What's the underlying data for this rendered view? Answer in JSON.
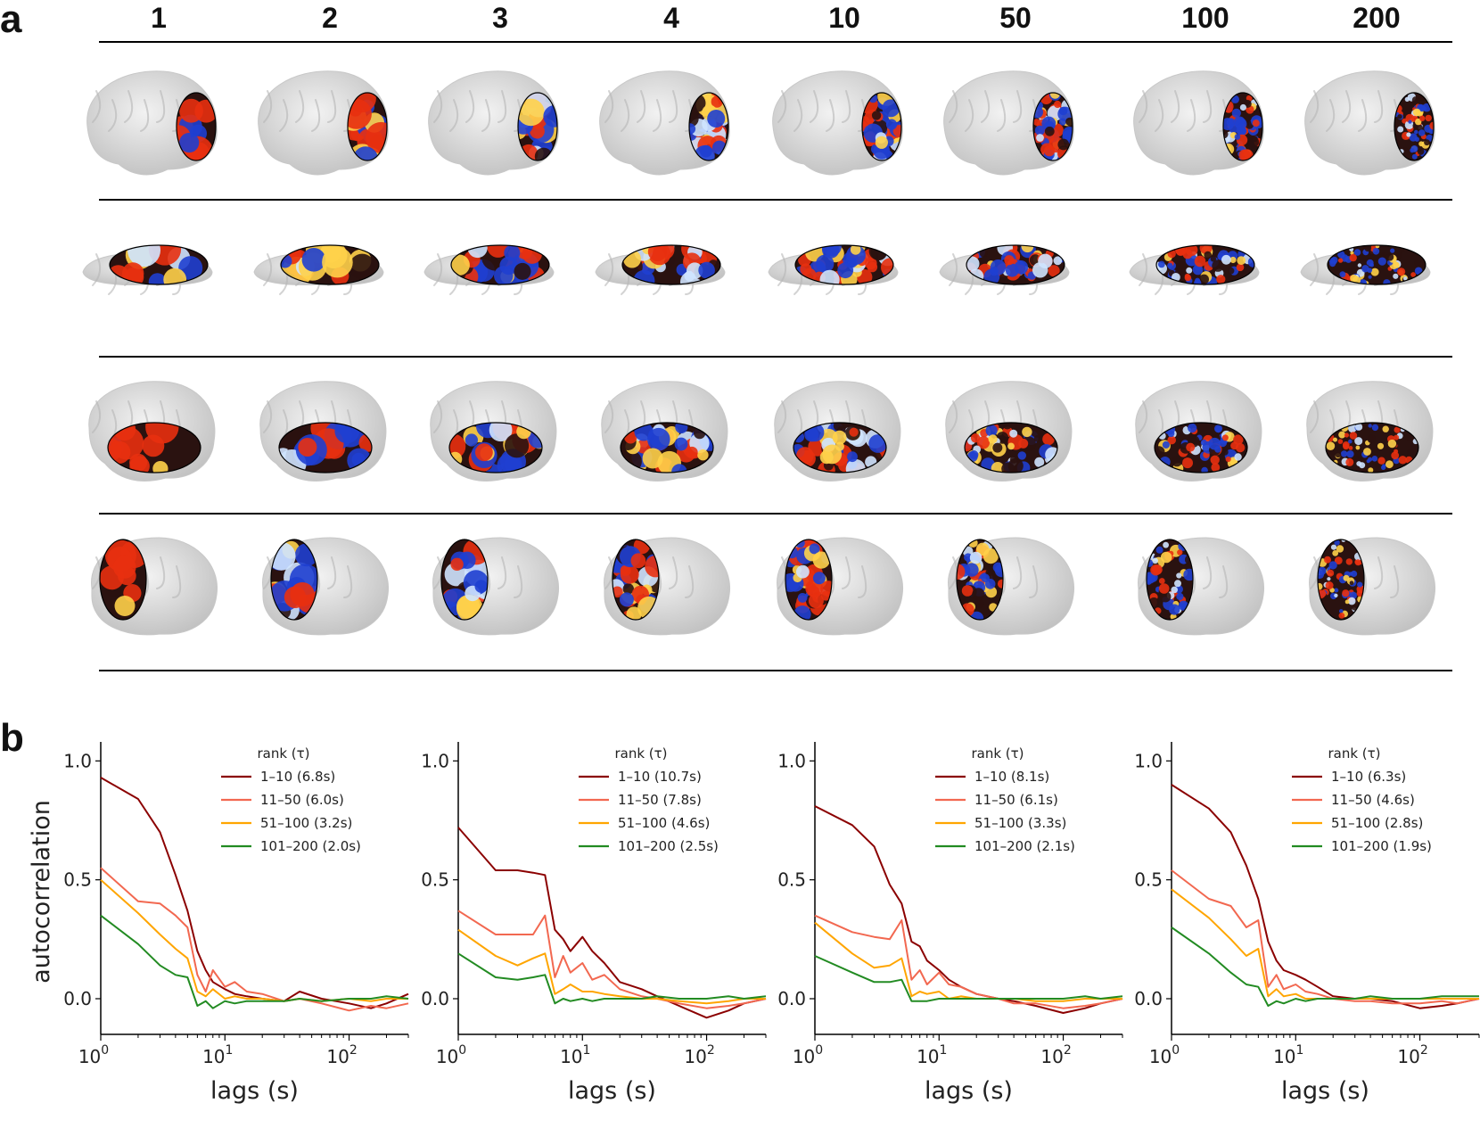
{
  "panel_a": {
    "letter": "a",
    "columns": [
      "1",
      "2",
      "3",
      "4",
      "10",
      "50",
      "100",
      "200"
    ],
    "rows": [
      {
        "view": "lateral",
        "region": "occipital"
      },
      {
        "view": "inferior",
        "region": "temporal-occipital"
      },
      {
        "view": "lateral",
        "region": "temporal"
      },
      {
        "view": "medial",
        "region": "parietal-occipital"
      }
    ],
    "colormap": {
      "negative": "#1f3fd0",
      "neg_light": "#cfe4ff",
      "positive": "#e83010",
      "pos_light": "#ffd24a",
      "dark": "#2a1210"
    },
    "brain_color": "#d9d9d9"
  },
  "panel_b": {
    "letter": "b",
    "ylabel": "autocorrelation",
    "legend_title": "rank (τ)",
    "series_colors": [
      "#8b0000",
      "#f26850",
      "#ffa500",
      "#228b22"
    ],
    "charts": [
      {
        "xlabel": "lags (s)",
        "xscale": "log",
        "xlim": [
          1,
          300
        ],
        "ylim": [
          -0.15,
          1.05
        ],
        "xticks": [
          {
            "base": "10",
            "exp": "0",
            "v": 1
          },
          {
            "base": "10",
            "exp": "1",
            "v": 10
          },
          {
            "base": "10",
            "exp": "2",
            "v": 100
          }
        ],
        "yticks": [
          "0.0",
          "0.5",
          "1.0"
        ],
        "legend": [
          "1–10 (6.8s)",
          "11–50 (6.0s)",
          "51–100 (3.2s)",
          "101–200 (2.0s)"
        ],
        "chart_data": {
          "type": "line",
          "series": [
            {
              "name": "1–10 (6.8s)",
              "x": [
                1,
                2,
                3,
                4,
                5,
                6,
                7,
                8,
                10,
                12,
                15,
                20,
                30,
                40,
                60,
                100,
                150,
                200,
                300
              ],
              "y": [
                0.93,
                0.84,
                0.7,
                0.52,
                0.37,
                0.2,
                0.12,
                0.07,
                0.04,
                0.02,
                0.01,
                0.0,
                -0.01,
                0.03,
                0.0,
                -0.02,
                -0.04,
                -0.02,
                0.02
              ]
            },
            {
              "name": "11–50 (6.0s)",
              "x": [
                1,
                2,
                3,
                4,
                5,
                6,
                7,
                8,
                10,
                12,
                15,
                20,
                30,
                40,
                60,
                100,
                150,
                200,
                300
              ],
              "y": [
                0.55,
                0.41,
                0.4,
                0.35,
                0.3,
                0.1,
                0.03,
                0.12,
                0.05,
                0.07,
                0.03,
                0.02,
                -0.01,
                0.0,
                -0.02,
                -0.05,
                -0.03,
                -0.04,
                -0.02
              ]
            },
            {
              "name": "51–100 (3.2s)",
              "x": [
                1,
                2,
                3,
                4,
                5,
                6,
                7,
                8,
                10,
                12,
                15,
                20,
                30,
                40,
                60,
                100,
                150,
                200,
                300
              ],
              "y": [
                0.5,
                0.36,
                0.27,
                0.21,
                0.17,
                0.03,
                0.01,
                0.04,
                0.0,
                0.01,
                0.0,
                0.0,
                -0.01,
                0.0,
                -0.01,
                0.0,
                -0.01,
                0.0,
                0.0
              ]
            },
            {
              "name": "101–200 (2.0s)",
              "x": [
                1,
                2,
                3,
                4,
                5,
                6,
                7,
                8,
                10,
                12,
                15,
                20,
                30,
                40,
                60,
                100,
                150,
                200,
                300
              ],
              "y": [
                0.35,
                0.23,
                0.14,
                0.1,
                0.09,
                -0.03,
                -0.01,
                -0.04,
                -0.01,
                -0.02,
                -0.01,
                -0.01,
                -0.01,
                0.0,
                -0.01,
                0.0,
                0.0,
                0.01,
                0.0
              ]
            }
          ]
        }
      },
      {
        "xlabel": "lags (s)",
        "xscale": "log",
        "xlim": [
          1,
          300
        ],
        "ylim": [
          -0.15,
          1.05
        ],
        "xticks": [
          {
            "base": "10",
            "exp": "0",
            "v": 1
          },
          {
            "base": "10",
            "exp": "1",
            "v": 10
          },
          {
            "base": "10",
            "exp": "2",
            "v": 100
          }
        ],
        "yticks": [
          "0.0",
          "0.5",
          "1.0"
        ],
        "legend": [
          "1–10 (10.7s)",
          "11–50 (7.8s)",
          "51–100 (4.6s)",
          "101–200 (2.5s)"
        ],
        "chart_data": {
          "type": "line",
          "series": [
            {
              "name": "1–10 (10.7s)",
              "x": [
                1,
                2,
                3,
                4,
                5,
                6,
                7,
                8,
                10,
                12,
                15,
                20,
                30,
                40,
                60,
                100,
                150,
                200,
                300
              ],
              "y": [
                0.72,
                0.54,
                0.54,
                0.53,
                0.52,
                0.29,
                0.25,
                0.2,
                0.26,
                0.2,
                0.15,
                0.07,
                0.04,
                0.01,
                -0.03,
                -0.08,
                -0.05,
                -0.02,
                0.0
              ]
            },
            {
              "name": "11–50 (7.8s)",
              "x": [
                1,
                2,
                3,
                4,
                5,
                6,
                7,
                8,
                10,
                12,
                15,
                20,
                30,
                40,
                60,
                100,
                150,
                200,
                300
              ],
              "y": [
                0.37,
                0.27,
                0.27,
                0.27,
                0.35,
                0.09,
                0.18,
                0.11,
                0.15,
                0.08,
                0.1,
                0.04,
                0.01,
                0.0,
                -0.02,
                -0.04,
                -0.03,
                -0.02,
                0.0
              ]
            },
            {
              "name": "51–100 (4.6s)",
              "x": [
                1,
                2,
                3,
                4,
                5,
                6,
                7,
                8,
                10,
                12,
                15,
                20,
                30,
                40,
                60,
                100,
                150,
                200,
                300
              ],
              "y": [
                0.29,
                0.18,
                0.14,
                0.17,
                0.19,
                0.02,
                0.04,
                0.06,
                0.03,
                0.03,
                0.02,
                0.01,
                0.0,
                0.0,
                -0.01,
                -0.02,
                -0.01,
                0.0,
                0.0
              ]
            },
            {
              "name": "101–200 (2.5s)",
              "x": [
                1,
                2,
                3,
                4,
                5,
                6,
                7,
                8,
                10,
                12,
                15,
                20,
                30,
                40,
                60,
                100,
                150,
                200,
                300
              ],
              "y": [
                0.19,
                0.09,
                0.08,
                0.09,
                0.1,
                -0.02,
                0.0,
                -0.01,
                0.0,
                -0.01,
                0.0,
                0.0,
                0.0,
                0.01,
                0.0,
                0.0,
                0.01,
                0.0,
                0.01
              ]
            }
          ]
        }
      },
      {
        "xlabel": "lags (s)",
        "xscale": "log",
        "xlim": [
          1,
          300
        ],
        "ylim": [
          -0.15,
          1.05
        ],
        "xticks": [
          {
            "base": "10",
            "exp": "0",
            "v": 1
          },
          {
            "base": "10",
            "exp": "1",
            "v": 10
          },
          {
            "base": "10",
            "exp": "2",
            "v": 100
          }
        ],
        "yticks": [
          "0.0",
          "0.5",
          "1.0"
        ],
        "legend": [
          "1–10 (8.1s)",
          "11–50 (6.1s)",
          "51–100 (3.3s)",
          "101–200 (2.1s)"
        ],
        "chart_data": {
          "type": "line",
          "series": [
            {
              "name": "1–10 (8.1s)",
              "x": [
                1,
                2,
                3,
                4,
                5,
                6,
                7,
                8,
                10,
                12,
                15,
                20,
                30,
                40,
                60,
                100,
                150,
                200,
                300
              ],
              "y": [
                0.81,
                0.73,
                0.64,
                0.48,
                0.4,
                0.24,
                0.22,
                0.16,
                0.12,
                0.08,
                0.05,
                0.02,
                0.0,
                -0.01,
                -0.03,
                -0.06,
                -0.04,
                -0.02,
                0.0
              ]
            },
            {
              "name": "11–50 (6.1s)",
              "x": [
                1,
                2,
                3,
                4,
                5,
                6,
                7,
                8,
                10,
                12,
                15,
                20,
                30,
                40,
                60,
                100,
                150,
                200,
                300
              ],
              "y": [
                0.35,
                0.28,
                0.26,
                0.25,
                0.33,
                0.08,
                0.12,
                0.06,
                0.11,
                0.06,
                0.05,
                0.02,
                0.0,
                -0.02,
                -0.02,
                -0.04,
                -0.03,
                -0.02,
                0.0
              ]
            },
            {
              "name": "51–100 (3.3s)",
              "x": [
                1,
                2,
                3,
                4,
                5,
                6,
                7,
                8,
                10,
                12,
                15,
                20,
                30,
                40,
                60,
                100,
                150,
                200,
                300
              ],
              "y": [
                0.32,
                0.19,
                0.13,
                0.14,
                0.17,
                0.01,
                0.03,
                0.02,
                0.03,
                0.0,
                0.01,
                0.0,
                0.0,
                0.0,
                -0.01,
                -0.01,
                0.0,
                0.0,
                0.0
              ]
            },
            {
              "name": "101–200 (2.1s)",
              "x": [
                1,
                2,
                3,
                4,
                5,
                6,
                7,
                8,
                10,
                12,
                15,
                20,
                30,
                40,
                60,
                100,
                150,
                200,
                300
              ],
              "y": [
                0.18,
                0.11,
                0.07,
                0.07,
                0.08,
                -0.01,
                -0.01,
                -0.01,
                0.0,
                0.0,
                0.0,
                0.0,
                0.0,
                0.0,
                0.0,
                0.0,
                0.01,
                0.0,
                0.01
              ]
            }
          ]
        }
      },
      {
        "xlabel": "lags (s)",
        "xscale": "log",
        "xlim": [
          1,
          300
        ],
        "ylim": [
          -0.15,
          1.05
        ],
        "xticks": [
          {
            "base": "10",
            "exp": "0",
            "v": 1
          },
          {
            "base": "10",
            "exp": "1",
            "v": 10
          },
          {
            "base": "10",
            "exp": "2",
            "v": 100
          }
        ],
        "yticks": [
          "0.0",
          "0.5",
          "1.0"
        ],
        "legend": [
          "1–10 (6.3s)",
          "11–50 (4.6s)",
          "51–100 (2.8s)",
          "101–200 (1.9s)"
        ],
        "chart_data": {
          "type": "line",
          "series": [
            {
              "name": "1–10 (6.3s)",
              "x": [
                1,
                2,
                3,
                4,
                5,
                6,
                7,
                8,
                10,
                12,
                15,
                20,
                30,
                40,
                60,
                100,
                150,
                200,
                300
              ],
              "y": [
                0.9,
                0.8,
                0.7,
                0.56,
                0.42,
                0.24,
                0.16,
                0.12,
                0.1,
                0.08,
                0.05,
                0.01,
                0.0,
                0.0,
                -0.01,
                -0.04,
                -0.03,
                -0.02,
                0.0
              ]
            },
            {
              "name": "11–50 (4.6s)",
              "x": [
                1,
                2,
                3,
                4,
                5,
                6,
                7,
                8,
                10,
                12,
                15,
                20,
                30,
                40,
                60,
                100,
                150,
                200,
                300
              ],
              "y": [
                0.54,
                0.42,
                0.39,
                0.3,
                0.33,
                0.05,
                0.1,
                0.04,
                0.06,
                0.03,
                0.02,
                0.0,
                -0.01,
                -0.01,
                -0.02,
                -0.02,
                -0.01,
                -0.02,
                0.0
              ]
            },
            {
              "name": "51–100 (2.8s)",
              "x": [
                1,
                2,
                3,
                4,
                5,
                6,
                7,
                8,
                10,
                12,
                15,
                20,
                30,
                40,
                60,
                100,
                150,
                200,
                300
              ],
              "y": [
                0.46,
                0.34,
                0.25,
                0.18,
                0.21,
                0.01,
                0.04,
                0.01,
                0.02,
                0.0,
                0.0,
                0.0,
                0.0,
                0.0,
                0.0,
                0.0,
                0.0,
                0.0,
                0.0
              ]
            },
            {
              "name": "101–200 (1.9s)",
              "x": [
                1,
                2,
                3,
                4,
                5,
                6,
                7,
                8,
                10,
                12,
                15,
                20,
                30,
                40,
                60,
                100,
                150,
                200,
                300
              ],
              "y": [
                0.3,
                0.19,
                0.11,
                0.06,
                0.05,
                -0.03,
                -0.01,
                -0.02,
                0.0,
                -0.01,
                0.0,
                0.0,
                0.0,
                0.01,
                0.0,
                0.0,
                0.01,
                0.01,
                0.01
              ]
            }
          ]
        }
      }
    ]
  }
}
